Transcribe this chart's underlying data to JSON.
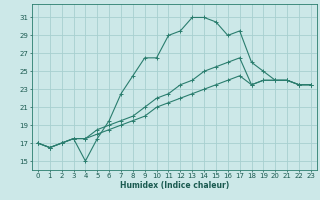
{
  "title": "",
  "xlabel": "Humidex (Indice chaleur)",
  "bg_color": "#cce8e8",
  "grid_color": "#a8d0d0",
  "line_color": "#2a7d6e",
  "xlim": [
    -0.5,
    23.5
  ],
  "ylim": [
    14.0,
    32.5
  ],
  "xticks": [
    0,
    1,
    2,
    3,
    4,
    5,
    6,
    7,
    8,
    9,
    10,
    11,
    12,
    13,
    14,
    15,
    16,
    17,
    18,
    19,
    20,
    21,
    22,
    23
  ],
  "yticks": [
    15,
    17,
    19,
    21,
    23,
    25,
    27,
    29,
    31
  ],
  "series": [
    [
      17.0,
      16.5,
      17.0,
      17.5,
      15.0,
      17.5,
      19.5,
      22.5,
      24.5,
      26.5,
      26.5,
      29.0,
      29.5,
      31.0,
      31.0,
      30.5,
      29.0,
      29.5,
      26.0,
      25.0,
      24.0,
      24.0,
      23.5,
      23.5
    ],
    [
      17.0,
      16.5,
      17.0,
      17.5,
      17.5,
      18.5,
      19.0,
      19.5,
      20.0,
      21.0,
      22.0,
      22.5,
      23.5,
      24.0,
      25.0,
      25.5,
      26.0,
      26.5,
      23.5,
      24.0,
      24.0,
      24.0,
      23.5,
      23.5
    ],
    [
      17.0,
      16.5,
      17.0,
      17.5,
      17.5,
      18.0,
      18.5,
      19.0,
      19.5,
      20.0,
      21.0,
      21.5,
      22.0,
      22.5,
      23.0,
      23.5,
      24.0,
      24.5,
      23.5,
      24.0,
      24.0,
      24.0,
      23.5,
      23.5
    ]
  ]
}
